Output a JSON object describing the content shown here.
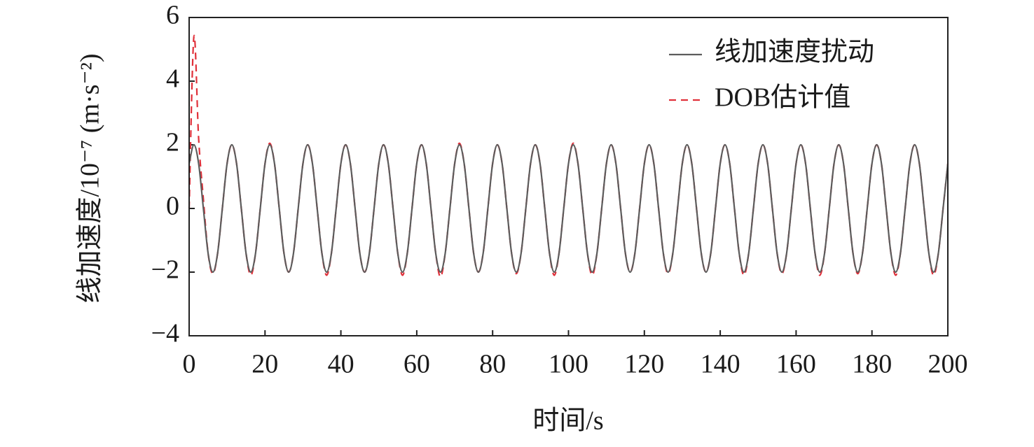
{
  "chart_data": {
    "type": "line",
    "xlabel": "时间/s",
    "ylabel": "线加速度/10⁻⁷ (m·s⁻²)",
    "xlim": [
      0,
      200
    ],
    "ylim": [
      -4,
      6
    ],
    "xticks": [
      0,
      20,
      40,
      60,
      80,
      100,
      120,
      140,
      160,
      180,
      200
    ],
    "yticks": [
      {
        "value": -4,
        "label": "−4"
      },
      {
        "value": -2,
        "label": "−2"
      },
      0,
      2,
      4,
      6
    ],
    "legend": "upper right",
    "x": [
      0,
      1.25,
      2.5,
      3.75,
      5,
      6.25,
      7.5,
      8.75,
      10,
      11.25,
      12.5,
      13.75,
      15,
      16.25,
      17.5,
      18.75,
      20,
      21.25,
      22.5,
      23.75,
      25,
      26.25,
      27.5,
      28.75,
      30,
      31.25,
      32.5,
      33.75,
      35,
      36.25,
      37.5,
      38.75,
      40,
      41.25,
      42.5,
      43.75,
      45,
      46.25,
      47.5,
      48.75,
      50,
      51.25,
      52.5,
      53.75,
      55,
      56.25,
      57.5,
      58.75,
      60,
      61.25,
      62.5,
      63.75,
      65,
      66.25,
      67.5,
      68.75,
      70,
      71.25,
      72.5,
      73.75,
      75,
      76.25,
      77.5,
      78.75,
      80,
      81.25,
      82.5,
      83.75,
      85,
      86.25,
      87.5,
      88.75,
      90,
      91.25,
      92.5,
      93.75,
      95,
      96.25,
      97.5,
      98.75,
      100,
      101.25,
      102.5,
      103.75,
      105,
      106.25,
      107.5,
      108.75,
      110,
      111.25,
      112.5,
      113.75,
      115,
      116.25,
      117.5,
      118.75,
      120,
      121.25,
      122.5,
      123.75,
      125,
      126.25,
      127.5,
      128.75,
      130,
      131.25,
      132.5,
      133.75,
      135,
      136.25,
      137.5,
      138.75,
      140,
      141.25,
      142.5,
      143.75,
      145,
      146.25,
      147.5,
      148.75,
      150,
      151.25,
      152.5,
      153.75,
      155,
      156.25,
      157.5,
      158.75,
      160,
      161.25,
      162.5,
      163.75,
      165,
      166.25,
      167.5,
      168.75,
      170,
      171.25,
      172.5,
      173.75,
      175,
      176.25,
      177.5,
      178.75,
      180,
      181.25,
      182.5,
      183.75,
      185,
      186.25,
      187.5,
      188.75,
      190,
      191.25,
      192.5,
      193.75,
      195,
      196.25,
      197.5,
      198.75,
      200
    ],
    "series": [
      {
        "name": "线加速度扰动",
        "color": "#5c5c5c",
        "dash": false,
        "values": [
          1.41,
          2,
          1.41,
          0,
          -1.41,
          -2,
          -1.41,
          0,
          1.41,
          2,
          1.41,
          0,
          -1.41,
          -2,
          -1.41,
          0,
          1.41,
          2,
          1.41,
          0,
          -1.41,
          -2,
          -1.41,
          0,
          1.41,
          2,
          1.41,
          0,
          -1.41,
          -2,
          -1.41,
          0,
          1.41,
          2,
          1.41,
          0,
          -1.41,
          -2,
          -1.41,
          0,
          1.41,
          2,
          1.41,
          0,
          -1.41,
          -2,
          -1.41,
          0,
          1.41,
          2,
          1.41,
          0,
          -1.41,
          -2,
          -1.41,
          0,
          1.41,
          2,
          1.41,
          0,
          -1.41,
          -2,
          -1.41,
          0,
          1.41,
          2,
          1.41,
          0,
          -1.41,
          -2,
          -1.41,
          0,
          1.41,
          2,
          1.41,
          0,
          -1.41,
          -2,
          -1.41,
          0,
          1.41,
          2,
          1.41,
          0,
          -1.41,
          -2,
          -1.41,
          0,
          1.41,
          2,
          1.41,
          0,
          -1.41,
          -2,
          -1.41,
          0,
          1.41,
          2,
          1.41,
          0,
          -1.41,
          -2,
          -1.41,
          0,
          1.41,
          2,
          1.41,
          0,
          -1.41,
          -2,
          -1.41,
          0,
          1.41,
          2,
          1.41,
          0,
          -1.41,
          -2,
          -1.41,
          0,
          1.41,
          2,
          1.41,
          0,
          -1.41,
          -2,
          -1.41,
          0,
          1.41,
          2,
          1.41,
          0,
          -1.41,
          -2,
          -1.41,
          0,
          1.41,
          2,
          1.41,
          0,
          -1.41,
          -2,
          -1.41,
          0,
          1.41,
          2,
          1.41,
          0,
          -1.41,
          -2,
          -1.41,
          0,
          1.41,
          2,
          1.41,
          0,
          -1.41,
          -2,
          -1.41,
          0,
          1.41
        ]
      },
      {
        "name": "DOB估计值",
        "color": "#e0303a",
        "dash": true,
        "values": [
          0,
          5.4,
          2.2,
          0.3,
          -1.41,
          -2.05,
          -1.41,
          0,
          1.41,
          2,
          1.41,
          0,
          -1.41,
          -2.1,
          -1.41,
          0,
          1.41,
          2.05,
          1.41,
          0,
          -1.41,
          -2,
          -1.41,
          0,
          1.41,
          2,
          1.41,
          0,
          -1.41,
          -2.1,
          -1.41,
          0,
          1.41,
          2,
          1.41,
          0,
          -1.41,
          -2,
          -1.41,
          0,
          1.41,
          2,
          1.41,
          0,
          -1.41,
          -2.1,
          -1.41,
          0,
          1.41,
          2,
          1.41,
          0,
          -1.41,
          -2.15,
          -1.41,
          0,
          1.41,
          2.05,
          1.41,
          0,
          -1.41,
          -2,
          -1.41,
          0,
          1.41,
          2,
          1.41,
          0,
          -1.41,
          -2.05,
          -1.41,
          0,
          1.41,
          2,
          1.41,
          0,
          -1.41,
          -2.1,
          -1.41,
          0,
          1.41,
          2.05,
          1.41,
          0,
          -1.41,
          -2.1,
          -1.41,
          0,
          1.41,
          2,
          1.41,
          0,
          -1.41,
          -2,
          -1.41,
          0,
          1.41,
          2,
          1.41,
          0,
          -1.41,
          -2.05,
          -1.41,
          0,
          1.41,
          2,
          1.41,
          0,
          -1.41,
          -2,
          -1.41,
          0,
          1.41,
          2,
          1.41,
          0,
          -1.41,
          -2.1,
          -1.41,
          0,
          1.41,
          2,
          1.41,
          0,
          -1.41,
          -2.05,
          -1.41,
          0,
          1.41,
          2,
          1.41,
          0,
          -1.41,
          -2.1,
          -1.41,
          0,
          1.41,
          2,
          1.41,
          0,
          -1.41,
          -2.05,
          -1.41,
          0,
          1.41,
          2,
          1.41,
          0,
          -1.41,
          -2.1,
          -1.41,
          0,
          1.41,
          2,
          1.41,
          0,
          -1.41,
          -2.1,
          -1.41,
          0,
          1.41
        ]
      }
    ]
  }
}
